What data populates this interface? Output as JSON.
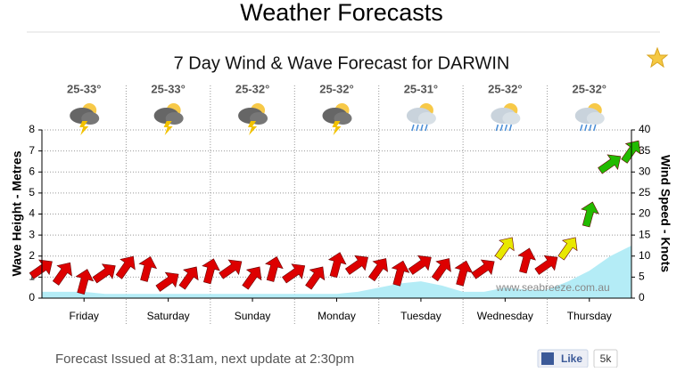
{
  "header": {
    "title": "Weather Forecasts"
  },
  "chart_data": {
    "type": "line",
    "title": "7 Day Wind & Wave Forecast for DARWIN",
    "ylabel": "Wave Height - Metres",
    "y2label": "Wind Speed - Knots",
    "watermark": "www.seabreeze.com.au",
    "annotations": [
      "25-33°",
      "25-33°",
      "25-32°",
      "25-32°",
      "25-31°",
      "25-32°",
      "25-32°"
    ],
    "x": [
      0,
      0.25,
      0.5,
      0.75,
      1,
      1.25,
      1.5,
      1.75,
      2,
      2.25,
      2.5,
      2.75,
      3,
      3.25,
      3.5,
      3.75,
      4,
      4.25,
      4.5,
      4.75,
      5,
      5.25,
      5.5,
      5.75,
      6,
      6.25,
      6.5,
      6.75,
      7
    ],
    "xlim": [
      0,
      7
    ],
    "xticks": [
      {
        "value": 0.5,
        "label": "Friday"
      },
      {
        "value": 1.5,
        "label": "Saturday"
      },
      {
        "value": 2.5,
        "label": "Sunday"
      },
      {
        "value": 3.5,
        "label": "Monday"
      },
      {
        "value": 4.5,
        "label": "Tuesday"
      },
      {
        "value": 5.5,
        "label": "Wednesday"
      },
      {
        "value": 6.5,
        "label": "Thursday"
      }
    ],
    "ylim": [
      0,
      8
    ],
    "yticks": [
      0,
      1,
      2,
      3,
      4,
      5,
      6,
      7,
      8
    ],
    "y2lim": [
      0,
      40
    ],
    "y2ticks": [
      0,
      5,
      10,
      15,
      20,
      25,
      30,
      35,
      40
    ],
    "grid": true,
    "series": [
      {
        "axis": "y",
        "color": "#b4ecf6",
        "values": [
          0.3,
          0.3,
          0.3,
          0.2,
          0.2,
          0.2,
          0.2,
          0.2,
          0.2,
          0.2,
          0.2,
          0.2,
          0.2,
          0.2,
          0.2,
          0.3,
          0.5,
          0.7,
          0.8,
          0.6,
          0.3,
          0.3,
          0.5,
          0.4,
          0.4,
          0.8,
          1.3,
          2.0,
          2.5
        ]
      },
      {
        "axis": "y2",
        "values": [
          7,
          6,
          4,
          6,
          7.5,
          7,
          4,
          5,
          6.5,
          7,
          5,
          7,
          6,
          5,
          8,
          8,
          7,
          6,
          8,
          7,
          6,
          7,
          12,
          9,
          8,
          12,
          20,
          32,
          35
        ],
        "colors": [
          "#dd0000",
          "#dd0000",
          "#dd0000",
          "#dd0000",
          "#dd0000",
          "#dd0000",
          "#dd0000",
          "#dd0000",
          "#dd0000",
          "#dd0000",
          "#dd0000",
          "#dd0000",
          "#dd0000",
          "#dd0000",
          "#dd0000",
          "#dd0000",
          "#dd0000",
          "#dd0000",
          "#dd0000",
          "#dd0000",
          "#dd0000",
          "#dd0000",
          "#e8e800",
          "#dd0000",
          "#dd0000",
          "#e8e800",
          "#22bb00",
          "#22bb00",
          "#22bb00"
        ]
      }
    ]
  },
  "footer": {
    "issued": "Forecast Issued at 8:31am, next update at 2:30pm",
    "like": "Like",
    "like_count": "5k"
  }
}
